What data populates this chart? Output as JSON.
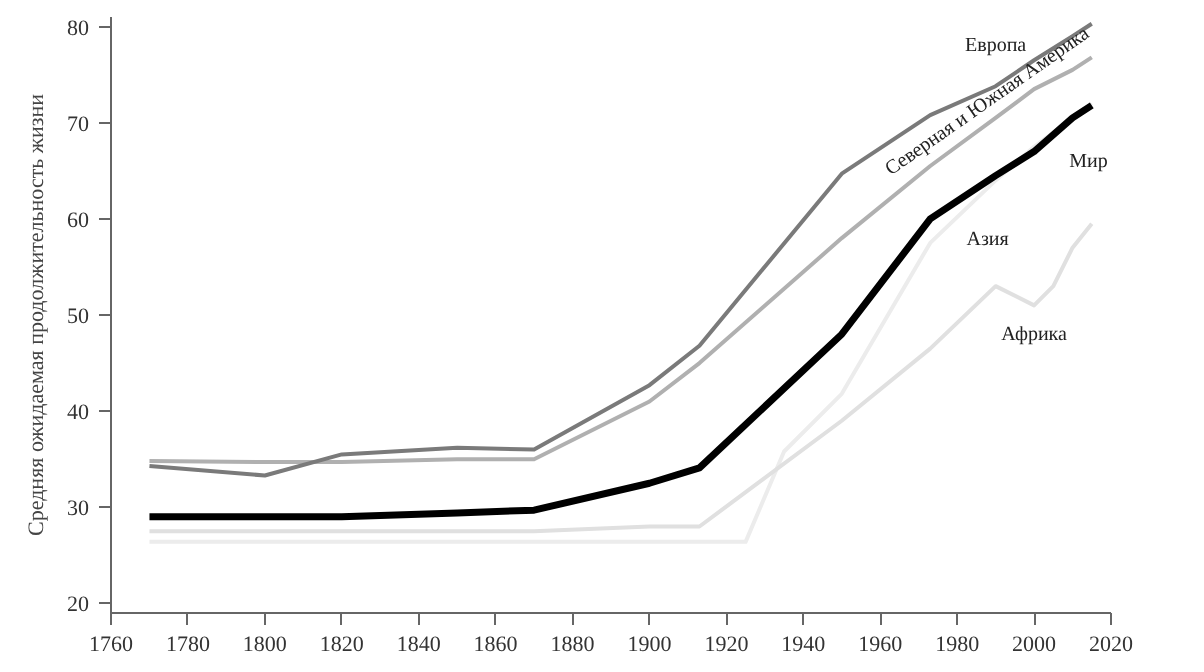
{
  "chart_data": {
    "type": "line",
    "ylabel": "Средняя ожидаемая продолжительность жизни",
    "xlim": [
      1760,
      2020
    ],
    "ylim": [
      19,
      81
    ],
    "xticks": [
      1760,
      1780,
      1800,
      1820,
      1840,
      1860,
      1880,
      1900,
      1920,
      1940,
      1960,
      1980,
      2000,
      2020
    ],
    "yticks": [
      20,
      30,
      40,
      50,
      60,
      70,
      80
    ],
    "grid": false,
    "marker": "none",
    "line_style": "solid",
    "series": [
      {
        "name": "Азия",
        "color": "#ececec",
        "x": [
          1770,
          1925,
          1935,
          1950,
          1973,
          1990,
          2000,
          2015
        ],
        "values": [
          26.4,
          26.4,
          35.8,
          41.8,
          57.5,
          64,
          67.5,
          72
        ]
      },
      {
        "name": "Африка",
        "color": "#e0e0e0",
        "x": [
          1770,
          1870,
          1900,
          1913,
          1950,
          1973,
          1990,
          2000,
          2005,
          2010,
          2015
        ],
        "values": [
          27.5,
          27.5,
          28,
          28,
          39,
          46.5,
          53,
          51,
          53,
          57,
          59.5
        ]
      },
      {
        "name": "Северная и Южная Америка",
        "color": "#b0b0b0",
        "x": [
          1770,
          1800,
          1820,
          1850,
          1870,
          1900,
          1913,
          1950,
          1973,
          1990,
          2000,
          2010,
          2015
        ],
        "values": [
          34.8,
          34.7,
          34.7,
          35,
          35,
          41,
          45,
          58,
          65.5,
          70.5,
          73.5,
          75.5,
          76.8
        ]
      },
      {
        "name": "Европа",
        "color": "#7a7a7a",
        "x": [
          1770,
          1800,
          1820,
          1850,
          1870,
          1900,
          1913,
          1950,
          1973,
          1990,
          2000,
          2010,
          2015
        ],
        "values": [
          34.3,
          33.3,
          35.5,
          36.2,
          36,
          42.7,
          46.8,
          64.7,
          70.8,
          73.8,
          76.5,
          79,
          80.3
        ]
      },
      {
        "name": "Мир",
        "color": "#000000",
        "x": [
          1770,
          1800,
          1820,
          1850,
          1870,
          1900,
          1913,
          1950,
          1973,
          1990,
          2000,
          2010,
          2015
        ],
        "values": [
          29,
          29,
          29,
          29.4,
          29.7,
          32.5,
          34.1,
          48,
          60,
          64.5,
          67,
          70.5,
          71.8
        ]
      }
    ]
  }
}
